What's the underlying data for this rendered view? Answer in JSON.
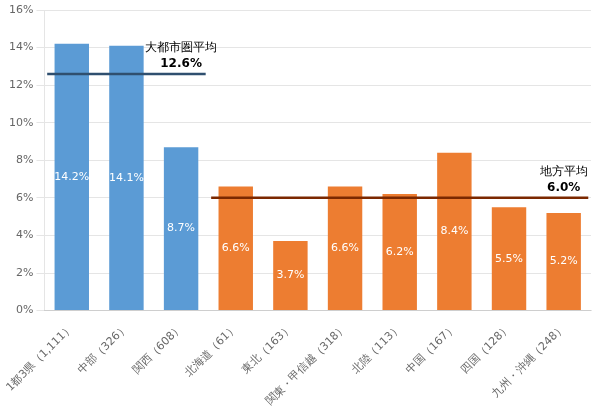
{
  "chart_data": {
    "type": "bar",
    "categories": [
      "1都3県（1,111）",
      "中部（326）",
      "関西（608）",
      "北海道（61）",
      "東北（163）",
      "関東・甲信越（318）",
      "北陸（113）",
      "中国（167）",
      "四国（128）",
      "九州・沖縄（248）"
    ],
    "values": [
      14.2,
      14.1,
      8.7,
      6.6,
      3.7,
      6.6,
      6.2,
      8.4,
      5.5,
      5.2
    ],
    "value_labels": [
      "14.2%",
      "14.1%",
      "8.7%",
      "6.6%",
      "3.7%",
      "6.6%",
      "6.2%",
      "8.4%",
      "5.5%",
      "5.2%"
    ],
    "data_labels": true,
    "colors": [
      "#5B9BD5",
      "#5B9BD5",
      "#5B9BD5",
      "#ED7D31",
      "#ED7D31",
      "#ED7D31",
      "#ED7D31",
      "#ED7D31",
      "#ED7D31",
      "#ED7D31"
    ],
    "ylim": [
      0,
      16
    ],
    "yticks": [
      {
        "value": 0,
        "label": "0%"
      },
      {
        "value": 2,
        "label": "2%"
      },
      {
        "value": 4,
        "label": "4%"
      },
      {
        "value": 6,
        "label": "6%"
      },
      {
        "value": 8,
        "label": "8%"
      },
      {
        "value": 10,
        "label": "10%"
      },
      {
        "value": 12,
        "label": "12%"
      },
      {
        "value": 14,
        "label": "14%"
      },
      {
        "value": 16,
        "label": "16%"
      }
    ],
    "grid": true,
    "annotations": [
      {
        "label": "大都市圏平均",
        "value": 12.6,
        "value_label": "12.6%",
        "color": "#2F4F6F",
        "from": "1都3県（1,111）",
        "to": "関西（608）"
      },
      {
        "label": "地方平均",
        "value": 6.0,
        "value_label": "6.0%",
        "color": "#7B2800",
        "from": "北海道（61）",
        "to": "九州・沖縄（248）"
      }
    ]
  }
}
